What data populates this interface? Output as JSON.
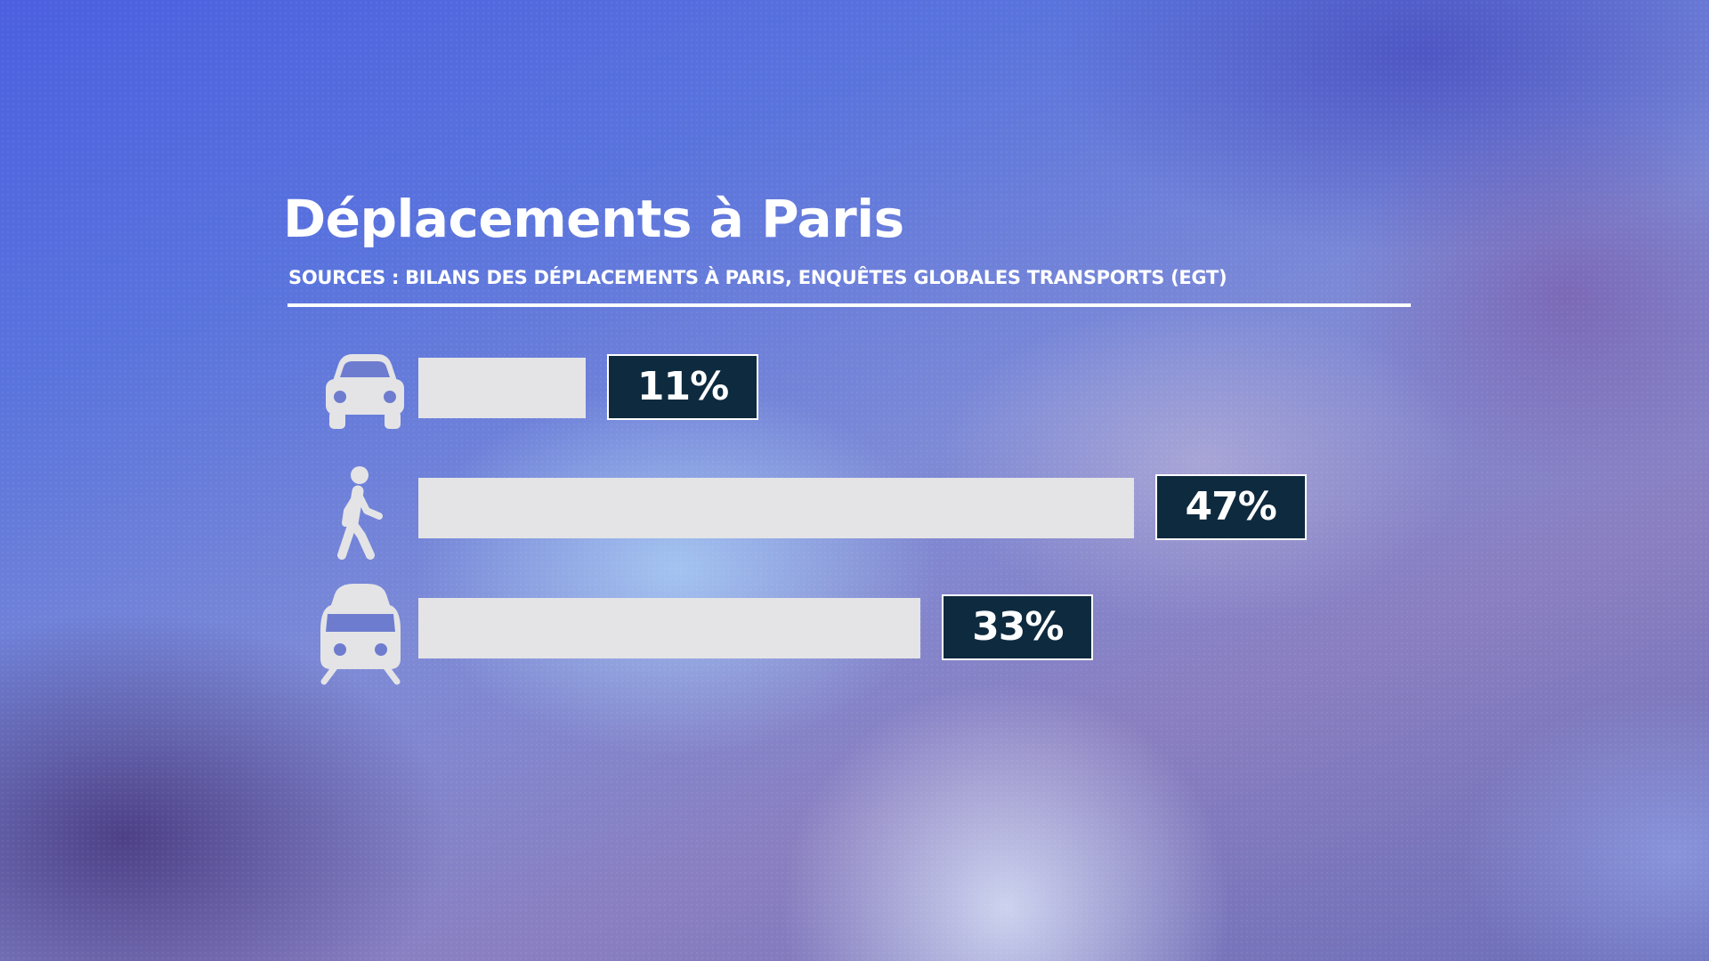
{
  "chart_data": {
    "type": "bar",
    "orientation": "horizontal",
    "title": "Déplacements à Paris",
    "subtitle": "SOURCES : BILANS DES DÉPLACEMENTS À PARIS, ENQUÊTES GLOBALES TRANSPORTS (EGT)",
    "categories": [
      "car-icon",
      "pedestrian-icon",
      "train-icon"
    ],
    "values": [
      11,
      47,
      33
    ],
    "value_labels": [
      "11%",
      "47%",
      "33%"
    ],
    "unit": "%",
    "grid": false,
    "legend": "none"
  },
  "colors": {
    "bar": "#e4e4e6",
    "label_background": "#0e2a3f",
    "label_text": "#ffffff",
    "title": "#ffffff"
  }
}
